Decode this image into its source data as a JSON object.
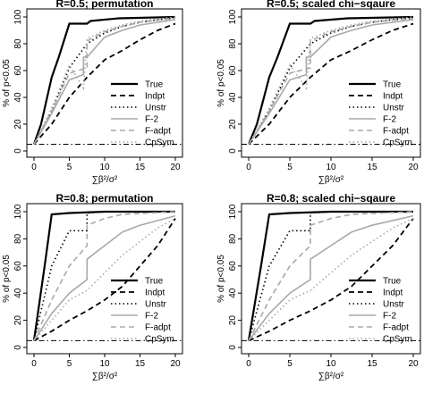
{
  "chart_data": [
    {
      "type": "line",
      "title": "R=0.5; permutation",
      "xlabel": "∑β²/σ²",
      "ylabel": "% of p<0.05",
      "xlim": [
        0,
        20
      ],
      "ylim": [
        0,
        100
      ],
      "xticks": [
        "0",
        "5",
        "10",
        "15",
        "20"
      ],
      "yticks": [
        "0",
        "20",
        "40",
        "60",
        "80",
        "100"
      ],
      "legend_position": "bottom-right",
      "reference_line": 5,
      "series": [
        {
          "name": "True",
          "color": "#000000",
          "dash": "solid",
          "width": 2.2,
          "points": [
            [
              0,
              5
            ],
            [
              1,
              20
            ],
            [
              2.5,
              55
            ],
            [
              3.5,
              70
            ],
            [
              5,
              95
            ],
            [
              7.5,
              95
            ],
            [
              8,
              97
            ],
            [
              12,
              99
            ],
            [
              20,
              100
            ]
          ]
        },
        {
          "name": "Indpt",
          "color": "#000000",
          "dash": "dash",
          "width": 1.8,
          "points": [
            [
              0,
              5
            ],
            [
              2.5,
              20
            ],
            [
              5,
              40
            ],
            [
              7.5,
              55
            ],
            [
              10,
              68
            ],
            [
              12.5,
              75
            ],
            [
              15,
              83
            ],
            [
              17.5,
              90
            ],
            [
              20,
              95
            ]
          ]
        },
        {
          "name": "Unstr",
          "color": "#000000",
          "dash": "dot",
          "width": 1.6,
          "points": [
            [
              0,
              5
            ],
            [
              2.5,
              30
            ],
            [
              5,
              62
            ],
            [
              7.5,
              80
            ],
            [
              10,
              88
            ],
            [
              12.5,
              93
            ],
            [
              15,
              96
            ],
            [
              17.5,
              98
            ],
            [
              20,
              99
            ]
          ]
        },
        {
          "name": "F-2",
          "color": "#a8a8a8",
          "dash": "solid",
          "width": 1.6,
          "points": [
            [
              0,
              5
            ],
            [
              2.5,
              28
            ],
            [
              5,
              53
            ],
            [
              7,
              57
            ],
            [
              7,
              70
            ],
            [
              7.5,
              70
            ],
            [
              10,
              85
            ],
            [
              12.5,
              90
            ],
            [
              15,
              94
            ],
            [
              20,
              98
            ]
          ]
        },
        {
          "name": "F-adpt",
          "color": "#a8a8a8",
          "dash": "dash",
          "width": 1.6,
          "points": [
            [
              0,
              5
            ],
            [
              2.5,
              30
            ],
            [
              5,
              58
            ],
            [
              7.5,
              62
            ],
            [
              7.5,
              82
            ],
            [
              10,
              89
            ],
            [
              12.5,
              93
            ],
            [
              15,
              96
            ],
            [
              20,
              99
            ]
          ]
        },
        {
          "name": "CpSym",
          "color": "#a8a8a8",
          "dash": "dot",
          "width": 1.6,
          "points": [
            [
              0,
              5
            ],
            [
              2.5,
              32
            ],
            [
              5,
              64
            ],
            [
              7,
              47
            ],
            [
              7.5,
              84
            ],
            [
              10,
              90
            ],
            [
              12.5,
              94
            ],
            [
              15,
              97
            ],
            [
              20,
              100
            ]
          ]
        }
      ]
    },
    {
      "type": "line",
      "title": "R=0.5; scaled chi−sqaure",
      "xlabel": "∑β²/σ²",
      "ylabel": "% of p<0.05",
      "xlim": [
        0,
        20
      ],
      "ylim": [
        0,
        100
      ],
      "xticks": [
        "0",
        "5",
        "10",
        "15",
        "20"
      ],
      "yticks": [
        "0",
        "20",
        "40",
        "60",
        "80",
        "100"
      ],
      "legend_position": "bottom-right",
      "reference_line": 5,
      "series": [
        {
          "name": "True",
          "color": "#000000",
          "dash": "solid",
          "width": 2.2,
          "points": [
            [
              0,
              5
            ],
            [
              1,
              20
            ],
            [
              2.5,
              55
            ],
            [
              3.5,
              70
            ],
            [
              5,
              95
            ],
            [
              7.5,
              95
            ],
            [
              8,
              97
            ],
            [
              12,
              99
            ],
            [
              20,
              100
            ]
          ]
        },
        {
          "name": "Indpt",
          "color": "#000000",
          "dash": "dash",
          "width": 1.8,
          "points": [
            [
              0,
              5
            ],
            [
              2.5,
              20
            ],
            [
              5,
              40
            ],
            [
              7.5,
              55
            ],
            [
              10,
              68
            ],
            [
              12.5,
              75
            ],
            [
              15,
              83
            ],
            [
              17.5,
              90
            ],
            [
              20,
              95
            ]
          ]
        },
        {
          "name": "Unstr",
          "color": "#000000",
          "dash": "dot",
          "width": 1.6,
          "points": [
            [
              0,
              5
            ],
            [
              2.5,
              30
            ],
            [
              5,
              62
            ],
            [
              7.5,
              80
            ],
            [
              10,
              88
            ],
            [
              12.5,
              93
            ],
            [
              15,
              96
            ],
            [
              17.5,
              98
            ],
            [
              20,
              99
            ]
          ]
        },
        {
          "name": "F-2",
          "color": "#a8a8a8",
          "dash": "solid",
          "width": 1.6,
          "points": [
            [
              0,
              5
            ],
            [
              2.5,
              28
            ],
            [
              5,
              53
            ],
            [
              7,
              57
            ],
            [
              7,
              70
            ],
            [
              7.5,
              70
            ],
            [
              10,
              85
            ],
            [
              12.5,
              90
            ],
            [
              15,
              94
            ],
            [
              20,
              98
            ]
          ]
        },
        {
          "name": "F-adpt",
          "color": "#a8a8a8",
          "dash": "dash",
          "width": 1.6,
          "points": [
            [
              0,
              5
            ],
            [
              2.5,
              30
            ],
            [
              5,
              58
            ],
            [
              7.5,
              62
            ],
            [
              7.5,
              82
            ],
            [
              10,
              89
            ],
            [
              12.5,
              93
            ],
            [
              15,
              96
            ],
            [
              20,
              99
            ]
          ]
        },
        {
          "name": "CpSym",
          "color": "#a8a8a8",
          "dash": "dot",
          "width": 1.6,
          "points": [
            [
              0,
              5
            ],
            [
              2.5,
              32
            ],
            [
              5,
              64
            ],
            [
              7,
              47
            ],
            [
              7.5,
              84
            ],
            [
              10,
              90
            ],
            [
              12.5,
              94
            ],
            [
              15,
              97
            ],
            [
              20,
              100
            ]
          ]
        }
      ]
    },
    {
      "type": "line",
      "title": "R=0.8; permutation",
      "xlabel": "∑β²/σ²",
      "ylabel": "% of p<0.05",
      "xlim": [
        0,
        20
      ],
      "ylim": [
        0,
        100
      ],
      "xticks": [
        "0",
        "5",
        "10",
        "15",
        "20"
      ],
      "yticks": [
        "0",
        "20",
        "40",
        "60",
        "80",
        "100"
      ],
      "legend_position": "bottom-right",
      "reference_line": 5,
      "series": [
        {
          "name": "True",
          "color": "#000000",
          "dash": "solid",
          "width": 2.2,
          "points": [
            [
              0,
              5
            ],
            [
              1.5,
              60
            ],
            [
              2.5,
              98
            ],
            [
              5,
              99
            ],
            [
              10,
              100
            ],
            [
              20,
              100
            ]
          ]
        },
        {
          "name": "Indpt",
          "color": "#000000",
          "dash": "dash",
          "width": 1.8,
          "points": [
            [
              0,
              5
            ],
            [
              2.5,
              12
            ],
            [
              5,
              20
            ],
            [
              7.5,
              27
            ],
            [
              10,
              35
            ],
            [
              12.5,
              45
            ],
            [
              15,
              60
            ],
            [
              17.5,
              75
            ],
            [
              20,
              95
            ]
          ]
        },
        {
          "name": "Unstr",
          "color": "#000000",
          "dash": "dot",
          "width": 1.6,
          "points": [
            [
              0,
              5
            ],
            [
              2.5,
              60
            ],
            [
              5,
              86
            ],
            [
              7.5,
              86
            ],
            [
              7.5,
              99
            ],
            [
              10,
              100
            ],
            [
              20,
              100
            ]
          ]
        },
        {
          "name": "F-2",
          "color": "#a8a8a8",
          "dash": "solid",
          "width": 1.6,
          "points": [
            [
              0,
              5
            ],
            [
              2.5,
              25
            ],
            [
              5,
              40
            ],
            [
              7.5,
              50
            ],
            [
              7.5,
              65
            ],
            [
              10,
              75
            ],
            [
              12.5,
              85
            ],
            [
              15,
              90
            ],
            [
              20,
              97
            ]
          ]
        },
        {
          "name": "F-adpt",
          "color": "#a8a8a8",
          "dash": "dash",
          "width": 1.6,
          "points": [
            [
              0,
              5
            ],
            [
              2.5,
              35
            ],
            [
              5,
              60
            ],
            [
              7.5,
              75
            ],
            [
              7.5,
              90
            ],
            [
              10,
              95
            ],
            [
              12.5,
              98
            ],
            [
              20,
              100
            ]
          ]
        },
        {
          "name": "CpSym",
          "color": "#a8a8a8",
          "dash": "dot",
          "width": 1.6,
          "points": [
            [
              0,
              5
            ],
            [
              2.5,
              20
            ],
            [
              5,
              35
            ],
            [
              7.5,
              42
            ],
            [
              10,
              55
            ],
            [
              12.5,
              68
            ],
            [
              15,
              78
            ],
            [
              17.5,
              88
            ],
            [
              20,
              95
            ]
          ]
        }
      ]
    },
    {
      "type": "line",
      "title": "R=0.8; scaled chi−sqaure",
      "xlabel": "∑β²/σ²",
      "ylabel": "% of p<0.05",
      "xlim": [
        0,
        20
      ],
      "ylim": [
        0,
        100
      ],
      "xticks": [
        "0",
        "5",
        "10",
        "15",
        "20"
      ],
      "yticks": [
        "0",
        "20",
        "40",
        "60",
        "80",
        "100"
      ],
      "legend_position": "bottom-right",
      "reference_line": 5,
      "series": [
        {
          "name": "True",
          "color": "#000000",
          "dash": "solid",
          "width": 2.2,
          "points": [
            [
              0,
              5
            ],
            [
              1.5,
              60
            ],
            [
              2.5,
              98
            ],
            [
              5,
              99
            ],
            [
              10,
              100
            ],
            [
              20,
              100
            ]
          ]
        },
        {
          "name": "Indpt",
          "color": "#000000",
          "dash": "dash",
          "width": 1.8,
          "points": [
            [
              0,
              5
            ],
            [
              2.5,
              12
            ],
            [
              5,
              20
            ],
            [
              7.5,
              27
            ],
            [
              10,
              35
            ],
            [
              12.5,
              45
            ],
            [
              15,
              60
            ],
            [
              17.5,
              75
            ],
            [
              20,
              95
            ]
          ]
        },
        {
          "name": "Unstr",
          "color": "#000000",
          "dash": "dot",
          "width": 1.6,
          "points": [
            [
              0,
              5
            ],
            [
              2.5,
              60
            ],
            [
              5,
              86
            ],
            [
              7.5,
              86
            ],
            [
              7.5,
              99
            ],
            [
              10,
              100
            ],
            [
              20,
              100
            ]
          ]
        },
        {
          "name": "F-2",
          "color": "#a8a8a8",
          "dash": "solid",
          "width": 1.6,
          "points": [
            [
              0,
              5
            ],
            [
              2.5,
              25
            ],
            [
              5,
              40
            ],
            [
              7.5,
              50
            ],
            [
              7.5,
              65
            ],
            [
              10,
              75
            ],
            [
              12.5,
              85
            ],
            [
              15,
              90
            ],
            [
              20,
              97
            ]
          ]
        },
        {
          "name": "F-adpt",
          "color": "#a8a8a8",
          "dash": "dash",
          "width": 1.6,
          "points": [
            [
              0,
              5
            ],
            [
              2.5,
              35
            ],
            [
              5,
              60
            ],
            [
              7.5,
              75
            ],
            [
              7.5,
              90
            ],
            [
              10,
              95
            ],
            [
              12.5,
              98
            ],
            [
              20,
              100
            ]
          ]
        },
        {
          "name": "CpSym",
          "color": "#a8a8a8",
          "dash": "dot",
          "width": 1.6,
          "points": [
            [
              0,
              5
            ],
            [
              2.5,
              20
            ],
            [
              5,
              35
            ],
            [
              7.5,
              42
            ],
            [
              10,
              55
            ],
            [
              12.5,
              68
            ],
            [
              15,
              78
            ],
            [
              17.5,
              88
            ],
            [
              20,
              95
            ]
          ]
        }
      ]
    }
  ]
}
